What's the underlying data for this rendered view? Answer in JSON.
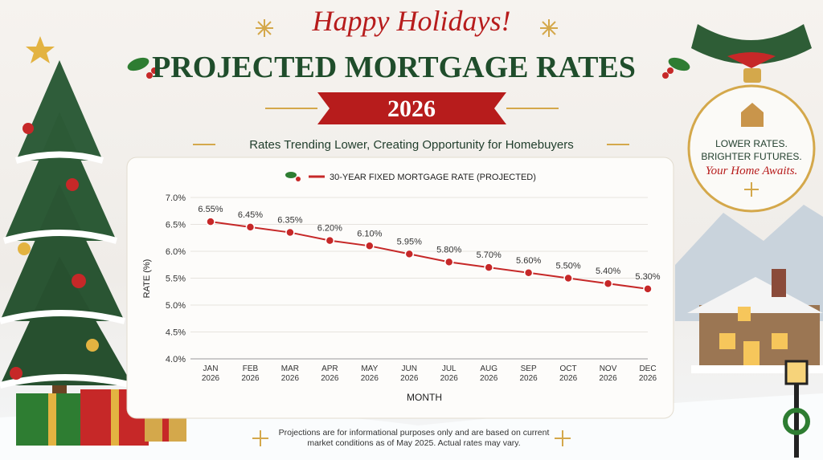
{
  "header": {
    "greeting": "Happy Holidays!",
    "title": "PROJECTED MORTGAGE RATES",
    "year": "2026",
    "subtitle": "Rates Trending Lower, Creating Opportunity for Homebuyers"
  },
  "ornament": {
    "line1": "LOWER RATES.",
    "line2": "BRIGHTER FUTURES.",
    "line3": "Your Home Awaits."
  },
  "footnote": "Projections are for informational purposes only and are based on current market conditions as of May 2025. Actual rates may vary.",
  "chart_data": {
    "type": "line",
    "x_label": "MONTH",
    "y_label": "RATE (%)",
    "categories": [
      "JAN 2026",
      "FEB 2026",
      "MAR 2026",
      "APR 2026",
      "MAY 2026",
      "JUN 2026",
      "JUL 2026",
      "AUG 2026",
      "SEP 2026",
      "OCT 2026",
      "NOV 2026",
      "DEC 2026"
    ],
    "series": [
      {
        "name": "30-YEAR FIXED MORTGAGE RATE (PROJECTED)",
        "color": "#c62828",
        "values": [
          6.55,
          6.45,
          6.35,
          6.2,
          6.1,
          5.95,
          5.8,
          5.7,
          5.6,
          5.5,
          5.4,
          5.3
        ],
        "value_labels": [
          "6.55%",
          "6.45%",
          "6.35%",
          "6.20%",
          "6.10%",
          "5.95%",
          "5.80%",
          "5.70%",
          "5.60%",
          "5.50%",
          "5.40%",
          "5.30%"
        ]
      }
    ],
    "ylim": [
      4,
      7
    ],
    "yticks": [
      {
        "value": 4,
        "label": "4.0%"
      },
      {
        "value": 4.5,
        "label": "4.5%"
      },
      {
        "value": 5,
        "label": "5.0%"
      },
      {
        "value": 5.5,
        "label": "5.5%"
      },
      {
        "value": 6,
        "label": "6.0%"
      },
      {
        "value": 6.5,
        "label": "6.5%"
      },
      {
        "value": 7,
        "label": "7.0%"
      }
    ],
    "grid": true
  }
}
